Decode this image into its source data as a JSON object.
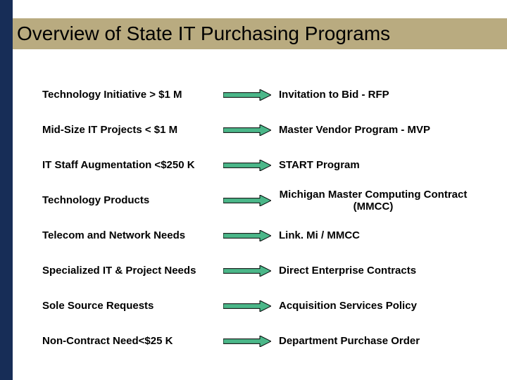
{
  "colors": {
    "vbar": "#172d57",
    "title_band": "#b9ab80",
    "arrow_fill": "#4bb789",
    "arrow_stroke": "#000000",
    "background": "#ffffff",
    "text": "#000000"
  },
  "title": "Overview of State IT Purchasing Programs",
  "title_fontsize": 28,
  "body_fontsize": 15,
  "arrow": {
    "width": 68,
    "height": 16
  },
  "rows": [
    {
      "left": "Technology Initiative > $1 M",
      "right": "Invitation to Bid - RFP",
      "right_align": "left"
    },
    {
      "left": "Mid-Size IT Projects < $1 M",
      "right": "Master Vendor Program - MVP",
      "right_align": "left"
    },
    {
      "left": "IT Staff Augmentation <$250 K",
      "right": "START Program",
      "right_align": "left"
    },
    {
      "left": "Technology Products",
      "right": "Michigan Master Computing Contract (MMCC)",
      "right_align": "center"
    },
    {
      "left": "Telecom and Network Needs",
      "right": "Link. Mi / MMCC",
      "right_align": "left"
    },
    {
      "left": "Specialized IT & Project Needs",
      "right": "Direct Enterprise Contracts",
      "right_align": "left"
    },
    {
      "left": "Sole Source Requests",
      "right": "Acquisition Services Policy",
      "right_align": "left"
    },
    {
      "left": "Non-Contract Need<$25 K",
      "right": "Department Purchase Order",
      "right_align": "left"
    }
  ]
}
